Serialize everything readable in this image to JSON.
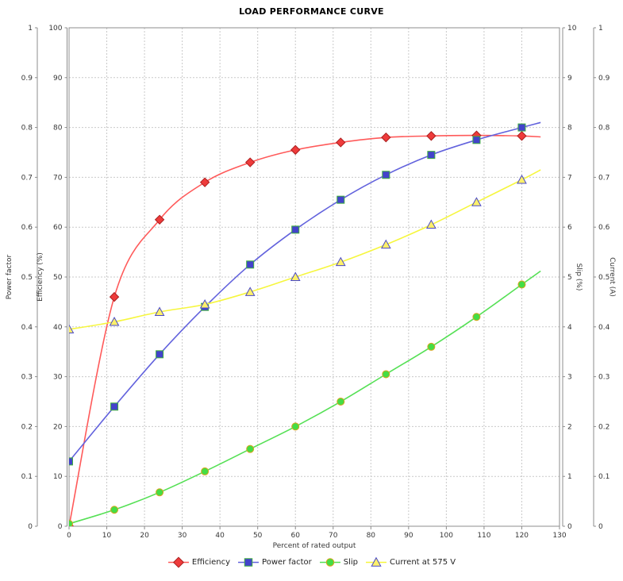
{
  "page": {
    "background": "#ffffff"
  },
  "chart_data": {
    "type": "line",
    "title": "LOAD PERFORMANCE CURVE",
    "xlabel": "Percent of rated output",
    "xlim": [
      0,
      130
    ],
    "x_tick_step": 10,
    "grid": true,
    "legend_position": "bottom",
    "x": [
      0,
      12,
      24,
      36,
      48,
      60,
      72,
      84,
      96,
      108,
      120
    ],
    "curve_extension_x": 125,
    "axes": [
      {
        "id": "power_factor",
        "label": "Power factor",
        "side": "left",
        "slot": "outer",
        "min": 0,
        "max": 1,
        "tick_step": 0.1
      },
      {
        "id": "efficiency",
        "label": "Efficiency (%)",
        "side": "left",
        "slot": "inner",
        "min": 0,
        "max": 100,
        "tick_step": 10
      },
      {
        "id": "slip",
        "label": "Slip (%)",
        "side": "right",
        "slot": "inner",
        "min": 0,
        "max": 10,
        "tick_step": 1
      },
      {
        "id": "current",
        "label": "Current (A)",
        "side": "right",
        "slot": "outer",
        "min": 0,
        "max": 1,
        "tick_step": 0.1
      }
    ],
    "series": [
      {
        "name": "Efficiency",
        "axis": "efficiency",
        "marker": "diamond",
        "line_color": "#ff5a5a",
        "fill": "#ee3b3b",
        "stroke": "#aa1f1f",
        "values": [
          0,
          46,
          61.5,
          69,
          73,
          75.5,
          77,
          78,
          78.3,
          78.4,
          78.3
        ],
        "curve_end_value": 78.1
      },
      {
        "name": "Power factor",
        "axis": "power_factor",
        "marker": "square",
        "line_color": "#6262dd",
        "fill": "#4343cb",
        "stroke": "#3faf3f",
        "values": [
          0.13,
          0.24,
          0.345,
          0.44,
          0.525,
          0.595,
          0.655,
          0.705,
          0.745,
          0.775,
          0.8
        ],
        "curve_end_value": 0.81
      },
      {
        "name": "Slip",
        "axis": "slip",
        "marker": "circle",
        "line_color": "#55e055",
        "fill": "#44dd44",
        "stroke": "#d9a41e",
        "values": [
          0.05,
          0.33,
          0.68,
          1.1,
          1.55,
          2.0,
          2.5,
          3.05,
          3.6,
          4.2,
          4.85
        ],
        "curve_end_value": 5.12
      },
      {
        "name": "Current at 575 V",
        "axis": "current",
        "marker": "triangle",
        "line_color": "#f6f63e",
        "fill": "#fdf06a",
        "stroke": "#4a4ac8",
        "values": [
          0.395,
          0.41,
          0.43,
          0.445,
          0.47,
          0.5,
          0.53,
          0.565,
          0.605,
          0.65,
          0.695
        ],
        "curve_end_value": 0.715
      }
    ],
    "style": {
      "grid_color": "#c9c9c9",
      "frame_color": "#8c8c8c",
      "tick_text_color": "#363636"
    }
  }
}
